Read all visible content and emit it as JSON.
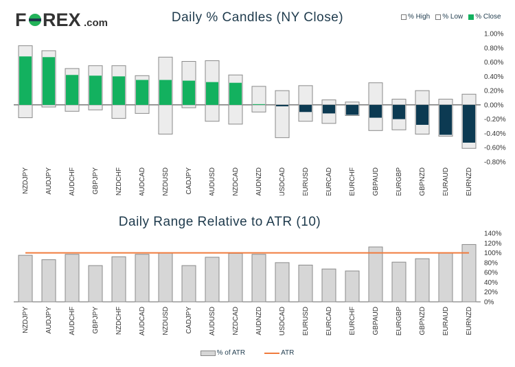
{
  "logo": {
    "text_fo": "F",
    "text_rex": "REX",
    "suffix": ".com",
    "brand_color": "#1e3a4c",
    "accent": "#23b35a"
  },
  "chart1": {
    "title": "Daily % Candles (NY Close)",
    "legend": [
      {
        "label": "% High",
        "swatch": "outline"
      },
      {
        "label": "% Low",
        "swatch": "outline"
      },
      {
        "label": "% Close",
        "swatch": "green"
      }
    ]
  },
  "chart2": {
    "title": "Daily Range Relative to ATR (10)",
    "legend": [
      {
        "label": "% of ATR",
        "swatch": "bar"
      },
      {
        "label": "ATR",
        "swatch": "line"
      }
    ]
  },
  "colors": {
    "positive": "#13b15f",
    "negative": "#0c3a52",
    "range_fill": "#dcdcdc",
    "range_stroke": "#8a8a8a",
    "atr_bar": "#d6d6d6",
    "atr_line": "#f07a3c",
    "axis_text": "#333333"
  },
  "chart_data": [
    {
      "type": "bar",
      "title": "Daily % Candles (NY Close)",
      "categories": [
        "NZDJPY",
        "AUDJPY",
        "AUDCHF",
        "GBPJPY",
        "NZDCHF",
        "AUDCAD",
        "NZDUSD",
        "CADJPY",
        "AUDUSD",
        "NZDCAD",
        "AUDNZD",
        "USDCAD",
        "EURUSD",
        "EURCAD",
        "EURCHF",
        "GBPAUD",
        "EURGBP",
        "GBPNZD",
        "EURAUD",
        "EURNZD"
      ],
      "series": [
        {
          "name": "% High",
          "values": [
            0.83,
            0.76,
            0.51,
            0.55,
            0.55,
            0.41,
            0.67,
            0.61,
            0.62,
            0.42,
            0.26,
            0.2,
            0.27,
            0.07,
            0.04,
            0.31,
            0.08,
            0.2,
            0.08,
            0.15
          ]
        },
        {
          "name": "% Low",
          "values": [
            -0.18,
            -0.03,
            -0.09,
            -0.07,
            -0.19,
            -0.12,
            -0.41,
            -0.04,
            -0.23,
            -0.27,
            -0.1,
            -0.46,
            -0.23,
            -0.26,
            -0.15,
            -0.36,
            -0.35,
            -0.41,
            -0.44,
            -0.61
          ]
        },
        {
          "name": "% Close",
          "values": [
            0.68,
            0.67,
            0.42,
            0.41,
            0.4,
            0.35,
            0.35,
            0.34,
            0.32,
            0.31,
            0.01,
            -0.02,
            -0.1,
            -0.12,
            -0.14,
            -0.18,
            -0.2,
            -0.28,
            -0.42,
            -0.53
          ]
        }
      ],
      "ylim": [
        -0.8,
        1.0
      ],
      "yticks": [
        "1.00%",
        "0.80%",
        "0.60%",
        "0.40%",
        "0.20%",
        "0.00%",
        "-0.20%",
        "-0.40%",
        "-0.60%",
        "-0.80%"
      ],
      "ytick_values": [
        1.0,
        0.8,
        0.6,
        0.4,
        0.2,
        0.0,
        -0.2,
        -0.4,
        -0.6,
        -0.8
      ]
    },
    {
      "type": "bar",
      "title": "Daily Range Relative to ATR (10)",
      "categories": [
        "NZDJPY",
        "AUDJPY",
        "AUDCHF",
        "GBPJPY",
        "NZDCHF",
        "AUDCAD",
        "NZDUSD",
        "CADJPY",
        "AUDUSD",
        "NZDCAD",
        "AUDNZD",
        "USDCAD",
        "EURUSD",
        "EURCAD",
        "EURCHF",
        "GBPAUD",
        "EURGBP",
        "GBPNZD",
        "EURAUD",
        "EURNZD"
      ],
      "series": [
        {
          "name": "% of ATR",
          "values": [
            95,
            86,
            97,
            74,
            92,
            97,
            100,
            74,
            91,
            99,
            97,
            80,
            75,
            67,
            63,
            112,
            81,
            88,
            100,
            117
          ]
        },
        {
          "name": "ATR",
          "values": [
            100,
            100,
            100,
            100,
            100,
            100,
            100,
            100,
            100,
            100,
            100,
            100,
            100,
            100,
            100,
            100,
            100,
            100,
            100,
            100
          ]
        }
      ],
      "ylim": [
        0,
        140
      ],
      "yticks": [
        "140%",
        "120%",
        "100%",
        "80%",
        "60%",
        "40%",
        "20%",
        "0%"
      ],
      "ytick_values": [
        140,
        120,
        100,
        80,
        60,
        40,
        20,
        0
      ]
    }
  ]
}
